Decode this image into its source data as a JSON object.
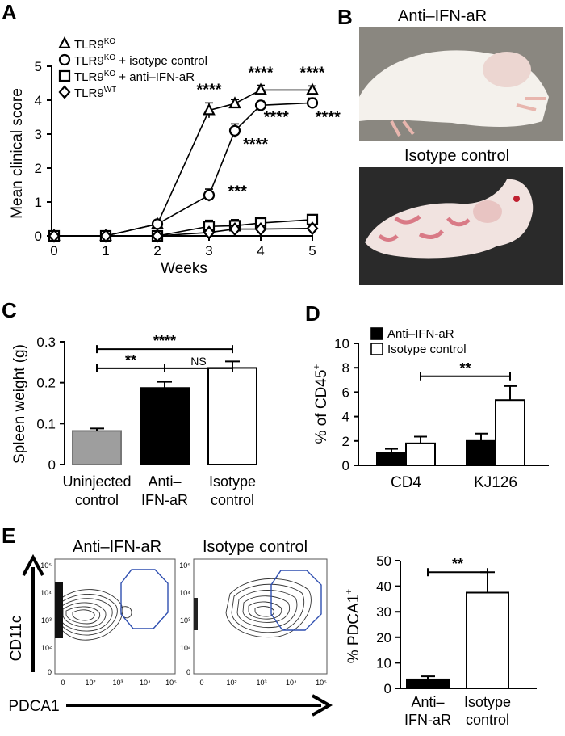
{
  "panels": {
    "A": "A",
    "B": "B",
    "C": "C",
    "D": "D",
    "E": "E"
  },
  "photo_b": {
    "top_caption": "Anti–IFN-aR",
    "bottom_caption": "Isotype control"
  },
  "contour_e": {
    "left_title": "Anti–IFN-aR",
    "right_title": "Isotype control",
    "y_axis_label": "CD11c",
    "x_axis_label": "PDCA1",
    "y_ticks": [
      "10⁵",
      "10⁴",
      "10³",
      "10²",
      "0"
    ],
    "x_ticks": [
      "0",
      "10²",
      "10³",
      "10⁴",
      "10⁵"
    ]
  },
  "colors": {
    "gate": "#2f4fb0",
    "gray_bar": "#9e9e9e",
    "black": "#000000",
    "white": "#ffffff"
  },
  "chart_data": [
    {
      "id": "A",
      "type": "line",
      "xlabel": "Weeks",
      "ylabel": "Mean clinical score",
      "xlim": [
        0,
        5
      ],
      "ylim": [
        0,
        5
      ],
      "xticks": [
        "0",
        "1",
        "2",
        "3",
        "4",
        "5"
      ],
      "yticks": [
        "0",
        "1",
        "2",
        "3",
        "4",
        "5"
      ],
      "legend_position": "top-left",
      "series": [
        {
          "legend": "TLR9",
          "legend_sup": "KO",
          "legend_suffix": "",
          "marker": "triangle",
          "x": [
            0,
            1,
            2,
            3,
            3.5,
            4,
            5
          ],
          "y": [
            0,
            0,
            0.35,
            3.7,
            3.9,
            4.3,
            4.3
          ],
          "err": [
            0,
            0,
            0.08,
            0.22,
            0.12,
            0.14,
            0.12
          ]
        },
        {
          "legend": "TLR9",
          "legend_sup": "KO",
          "legend_suffix": " + isotype control",
          "marker": "circle",
          "x": [
            0,
            1,
            2,
            3,
            3.5,
            4,
            5
          ],
          "y": [
            0,
            0,
            0.35,
            1.2,
            3.1,
            3.85,
            3.92
          ],
          "err": [
            0,
            0,
            0.08,
            0.18,
            0.2,
            0.12,
            0.14
          ]
        },
        {
          "legend": "TLR9",
          "legend_sup": "KO",
          "legend_suffix": " + anti–IFN-aR",
          "marker": "square",
          "x": [
            0,
            1,
            2,
            3,
            3.5,
            4,
            5
          ],
          "y": [
            0,
            0,
            0,
            0.28,
            0.3,
            0.38,
            0.48
          ],
          "err": [
            0,
            0,
            0,
            0.18,
            0.18,
            0.16,
            0.12
          ]
        },
        {
          "legend": "TLR9",
          "legend_sup": "WT",
          "legend_suffix": "",
          "marker": "diamond",
          "x": [
            0,
            1,
            2,
            3,
            3.5,
            4,
            5
          ],
          "y": [
            0,
            0,
            0,
            0.1,
            0.2,
            0.2,
            0.22
          ],
          "err": [
            0,
            0,
            0,
            0.08,
            0.1,
            0.1,
            0.1
          ]
        }
      ],
      "annotations": [
        {
          "text": "****",
          "x": 3.0,
          "y": 4.15
        },
        {
          "text": "****",
          "x": 4.0,
          "y": 4.65
        },
        {
          "text": "****",
          "x": 5.0,
          "y": 4.65
        },
        {
          "text": "****",
          "x": 4.3,
          "y": 3.35
        },
        {
          "text": "****",
          "x": 5.3,
          "y": 3.35
        },
        {
          "text": "****",
          "x": 3.9,
          "y": 2.55
        },
        {
          "text": "***",
          "x": 3.55,
          "y": 1.15
        }
      ]
    },
    {
      "id": "C",
      "type": "bar",
      "ylabel": "Spleen weight (g)",
      "ylim": [
        0,
        0.3
      ],
      "yticks": [
        "0",
        "0.1",
        "0.2",
        "0.3"
      ],
      "categories": [
        [
          "Uninjected",
          "control"
        ],
        [
          "Anti–",
          "IFN-aR"
        ],
        [
          "Isotype",
          "control"
        ]
      ],
      "values": [
        0.082,
        0.187,
        0.236
      ],
      "err": [
        0.006,
        0.015,
        0.016
      ],
      "fills": [
        "#9e9e9e",
        "#000000",
        "#ffffff"
      ],
      "brackets": [
        {
          "from": 0,
          "to": 2,
          "y": 0.282,
          "text": "****"
        },
        {
          "from": 0,
          "to": 1,
          "y": 0.235,
          "text": "**"
        },
        {
          "from": 1,
          "to": 2,
          "y": 0.235,
          "text": "NS"
        }
      ]
    },
    {
      "id": "D",
      "type": "bar",
      "ylabel": "% of CD45",
      "ylabel_sup": "+",
      "ylim": [
        0,
        10
      ],
      "yticks": [
        "0",
        "2",
        "4",
        "6",
        "8",
        "10"
      ],
      "categories": [
        "CD4",
        "KJ126"
      ],
      "legend_position": "top-left",
      "series": [
        {
          "name": "Anti–IFN-aR",
          "fill": "#000000",
          "values": [
            1.0,
            2.0
          ],
          "err": [
            0.35,
            0.6
          ]
        },
        {
          "name": "Isotype control",
          "fill": "#ffffff",
          "values": [
            1.8,
            5.35
          ],
          "err": [
            0.55,
            1.15
          ]
        }
      ],
      "brackets": [
        {
          "from_group": 0,
          "from_series": 1,
          "to_group": 1,
          "to_series": 1,
          "y": 7.3,
          "text": "**"
        }
      ]
    },
    {
      "id": "E",
      "type": "bar",
      "ylabel": "% PDCA1",
      "ylabel_sup": "+",
      "ylim": [
        0,
        50
      ],
      "yticks": [
        "0",
        "10",
        "20",
        "30",
        "40",
        "50"
      ],
      "categories": [
        [
          "Anti–",
          "IFN-aR"
        ],
        [
          "Isotype",
          "control"
        ]
      ],
      "values": [
        3.5,
        37.5
      ],
      "err": [
        1.2,
        8.0
      ],
      "fills": [
        "#000000",
        "#ffffff"
      ],
      "brackets": [
        {
          "from": 0,
          "to": 1,
          "y": 45.5,
          "text": "**"
        }
      ]
    }
  ]
}
